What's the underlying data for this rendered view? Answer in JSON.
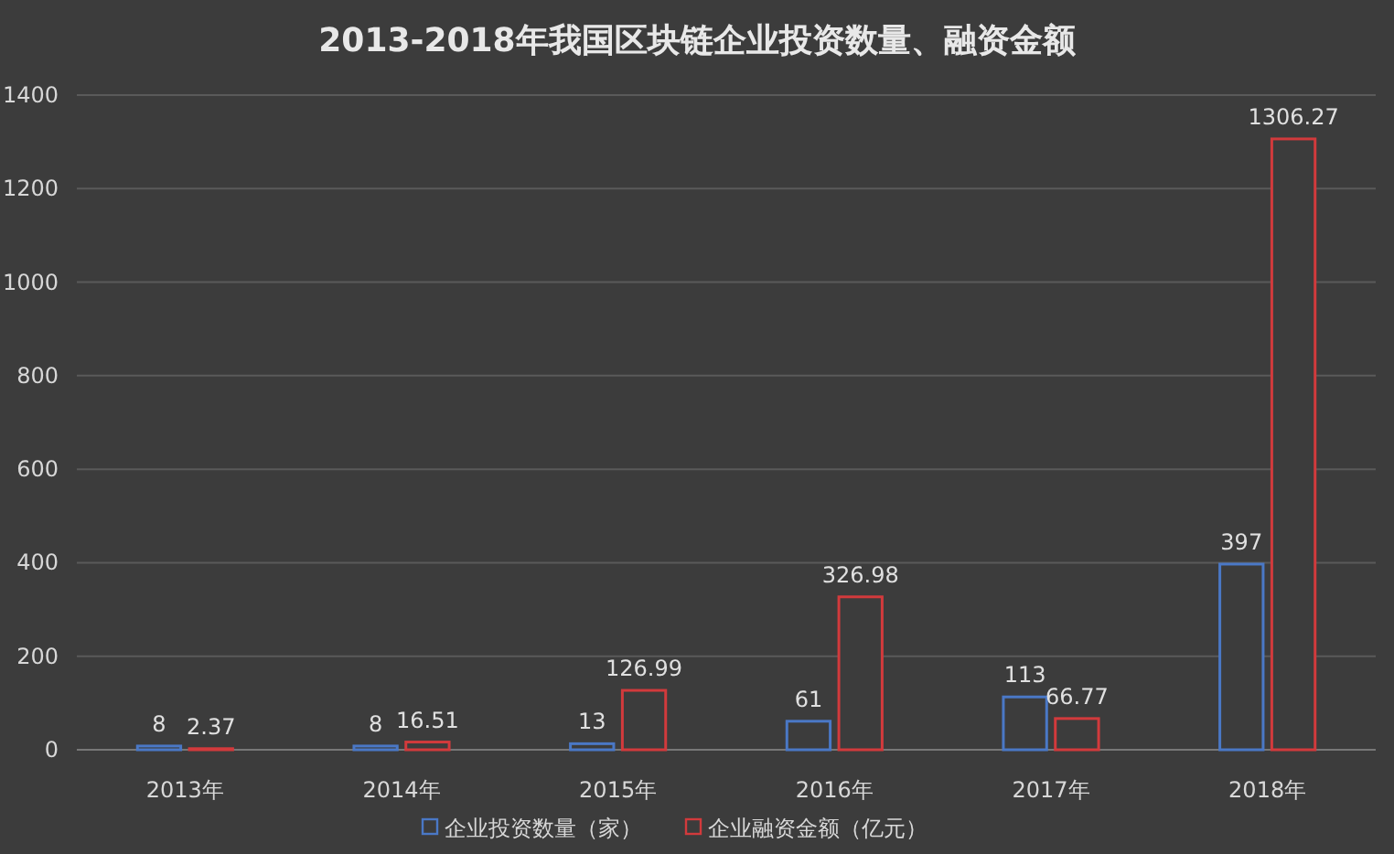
{
  "chart_data": {
    "type": "bar",
    "title": "2013-2018年我国区块链企业投资数量、融资金额",
    "categories": [
      "2013年",
      "2014年",
      "2015年",
      "2016年",
      "2017年",
      "2018年"
    ],
    "series": [
      {
        "name": "企业投资数量（家）",
        "color": "#4a78c6",
        "values": [
          8,
          8,
          13,
          61,
          113,
          397
        ]
      },
      {
        "name": "企业融资金额（亿元）",
        "color": "#d23a3c",
        "values": [
          2.37,
          16.51,
          126.99,
          326.98,
          66.77,
          1306.27
        ]
      }
    ],
    "ylim": [
      0,
      1400
    ],
    "yticks": [
      0,
      200,
      400,
      600,
      800,
      1000,
      1200,
      1400
    ],
    "grid": "y",
    "legend": "bottom",
    "data_labels": true
  }
}
